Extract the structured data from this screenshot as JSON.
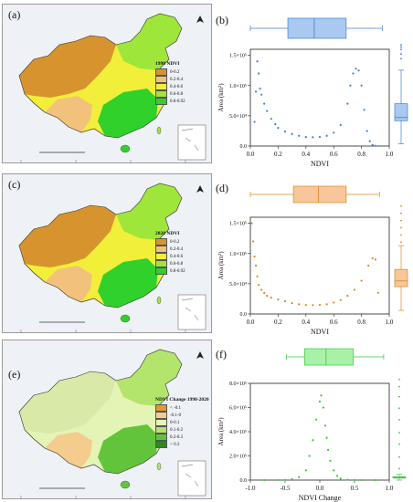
{
  "maps": [
    {
      "label": "(a)",
      "legend_title": "1998 NDVI",
      "legend": [
        {
          "text": "0-0.2",
          "color": "#d7942e"
        },
        {
          "text": "0.2-0.4",
          "color": "#f2c27c"
        },
        {
          "text": "0.4-0.6",
          "color": "#f2ef3a"
        },
        {
          "text": "0.6-0.8",
          "color": "#9ee63a"
        },
        {
          "text": "0.8-0.92",
          "color": "#2fd12a"
        }
      ]
    },
    {
      "label": "(c)",
      "legend_title": "2020 NDVI",
      "legend": [
        {
          "text": "0-0.2",
          "color": "#d7942e"
        },
        {
          "text": "0.2-0.4",
          "color": "#f2c27c"
        },
        {
          "text": "0.4-0.6",
          "color": "#f2ef3a"
        },
        {
          "text": "0.6-0.8",
          "color": "#9ee63a"
        },
        {
          "text": "0.8-0.92",
          "color": "#2fd12a"
        }
      ]
    },
    {
      "label": "(e)",
      "legend_title": "NDVI Change 1998-2020",
      "legend": [
        {
          "text": "< -0.1",
          "color": "#e09a2c"
        },
        {
          "text": "-0.1-0",
          "color": "#f3cc8e"
        },
        {
          "text": "0-0.1",
          "color": "#e4f4b5"
        },
        {
          "text": "0.1-0.2",
          "color": "#b3e46b"
        },
        {
          "text": "0.2-0.3",
          "color": "#62c43b"
        },
        {
          "text": "> 0.3",
          "color": "#2b8a22"
        }
      ]
    }
  ],
  "chart_data": [
    {
      "label": "(b)",
      "type": "scatter",
      "xlabel": "NDVI",
      "ylabel": "Area (km²)",
      "color": "#3f7fd1",
      "box_fill": "#aac9f0",
      "xlim": [
        0,
        1
      ],
      "ylim": [
        0,
        160000
      ],
      "xticks": [
        0.0,
        0.2,
        0.4,
        0.6,
        0.8,
        1.0
      ],
      "yticks": [
        {
          "v": 0,
          "t": "0.0"
        },
        {
          "v": 50000,
          "t": "5.0×10⁴"
        },
        {
          "v": 100000,
          "t": "1.0×10⁵"
        },
        {
          "v": 150000,
          "t": "1.5×10⁵"
        }
      ],
      "x": [
        0.03,
        0.04,
        0.05,
        0.06,
        0.07,
        0.08,
        0.1,
        0.12,
        0.15,
        0.18,
        0.2,
        0.25,
        0.3,
        0.35,
        0.4,
        0.45,
        0.5,
        0.55,
        0.6,
        0.65,
        0.7,
        0.72,
        0.74,
        0.76,
        0.78,
        0.8,
        0.82,
        0.84,
        0.86,
        0.88,
        0.9
      ],
      "y": [
        40000,
        90000,
        140000,
        120000,
        95000,
        85000,
        70000,
        58000,
        45000,
        36000,
        30000,
        24000,
        20000,
        17000,
        15000,
        14500,
        15000,
        17000,
        22000,
        35000,
        70000,
        100000,
        120000,
        128000,
        125000,
        100000,
        60000,
        25000,
        8000,
        2000,
        500
      ],
      "hbox": {
        "min": 0.0,
        "q1": 0.27,
        "median": 0.46,
        "q3": 0.69,
        "max": 0.95,
        "top": 16,
        "bottom": 38
      },
      "vbox": {
        "min": 5000,
        "q1": 55000,
        "median": 62000,
        "q3": 92000,
        "max": 165000,
        "left": 198,
        "right": 212,
        "scale": [
          0,
          250000
        ],
        "out": [
          190000,
          200000,
          210000,
          215000,
          220000
        ]
      }
    },
    {
      "label": "(d)",
      "type": "scatter",
      "xlabel": "NDVI",
      "ylabel": "Area (km²)",
      "color": "#d88a1e",
      "box_fill": "#f8c69a",
      "xlim": [
        0,
        1
      ],
      "ylim": [
        0,
        160000
      ],
      "xticks": [
        0.0,
        0.2,
        0.4,
        0.6,
        0.8,
        1.0
      ],
      "yticks": [
        {
          "v": 0,
          "t": "0.0"
        },
        {
          "v": 50000,
          "t": "5.0×10⁴"
        },
        {
          "v": 100000,
          "t": "1.0×10⁵"
        },
        {
          "v": 150000,
          "t": "1.5×10⁵"
        }
      ],
      "x": [
        0.01,
        0.02,
        0.03,
        0.04,
        0.05,
        0.06,
        0.08,
        0.1,
        0.12,
        0.15,
        0.2,
        0.25,
        0.3,
        0.35,
        0.4,
        0.45,
        0.5,
        0.55,
        0.6,
        0.65,
        0.7,
        0.75,
        0.8,
        0.85,
        0.88,
        0.9,
        0.92
      ],
      "y": [
        150000,
        120000,
        95000,
        80000,
        62000,
        48000,
        40000,
        35000,
        30000,
        27000,
        24000,
        21000,
        18000,
        16000,
        15000,
        14500,
        15000,
        16000,
        19000,
        23000,
        30000,
        40000,
        55000,
        80000,
        92000,
        90000,
        35000
      ],
      "hbox": {
        "min": 0.0,
        "q1": 0.31,
        "median": 0.49,
        "q3": 0.69,
        "max": 0.93,
        "top": 16,
        "bottom": 34
      },
      "vbox": {
        "min": 5000,
        "q1": 38000,
        "median": 46000,
        "q3": 62000,
        "max": 95000,
        "left": 198,
        "right": 212,
        "scale": [
          0,
          160000
        ],
        "out": [
          100000,
          110000,
          120000,
          130000,
          140000,
          150000
        ]
      }
    },
    {
      "label": "(f)",
      "type": "scatter",
      "xlabel": "NDVI Change",
      "ylabel": "Area (km²)",
      "color": "#38c838",
      "box_fill": "#a9f1a9",
      "xlim": [
        -1,
        1
      ],
      "ylim": [
        0,
        800000
      ],
      "xticks": [
        -1.0,
        -0.5,
        0.0,
        0.5,
        1.0
      ],
      "yticks": [
        {
          "v": 0,
          "t": "0.0"
        },
        {
          "v": 200000,
          "t": "2.0×10⁵"
        },
        {
          "v": 400000,
          "t": "4.0×10⁵"
        },
        {
          "v": 600000,
          "t": "6.0×10⁵"
        },
        {
          "v": 800000,
          "t": "8.0×10⁵"
        }
      ],
      "x": [
        -0.8,
        -0.6,
        -0.5,
        -0.4,
        -0.3,
        -0.2,
        -0.15,
        -0.1,
        -0.05,
        0.0,
        0.02,
        0.05,
        0.08,
        0.1,
        0.12,
        0.15,
        0.2,
        0.25,
        0.3,
        0.4,
        0.5,
        0.6,
        0.8
      ],
      "y": [
        0,
        500,
        2000,
        8000,
        25000,
        80000,
        200000,
        330000,
        500000,
        650000,
        700000,
        600000,
        450000,
        350000,
        250000,
        160000,
        80000,
        35000,
        12000,
        3000,
        800,
        0,
        0
      ],
      "hbox": {
        "min": -0.48,
        "q1": -0.22,
        "median": 0.09,
        "q3": 0.48,
        "max": 0.92,
        "top": 12,
        "bottom": 30
      },
      "vbox": {
        "min": 0,
        "q1": 14000,
        "median": 18000,
        "q3": 24000,
        "max": 40000,
        "left": 196,
        "right": 210,
        "scale": [
          0,
          800000
        ],
        "out": [
          80000,
          160000,
          250000,
          330000,
          420000,
          500000,
          580000,
          650000,
          700000
        ]
      }
    }
  ]
}
